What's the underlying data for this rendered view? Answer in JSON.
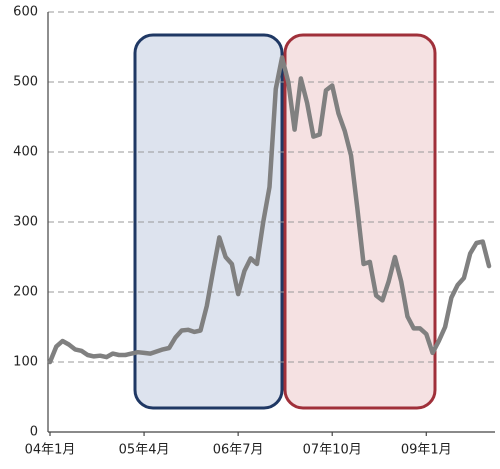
{
  "chart_data": {
    "type": "line",
    "categories": [
      "04年1月",
      null,
      null,
      null,
      null,
      null,
      null,
      null,
      null,
      null,
      null,
      null,
      null,
      null,
      null,
      "05年4月",
      null,
      null,
      null,
      null,
      null,
      null,
      null,
      null,
      null,
      null,
      null,
      null,
      null,
      null,
      "06年7月",
      null,
      null,
      null,
      null,
      null,
      null,
      null,
      null,
      null,
      null,
      null,
      null,
      null,
      null,
      "07年10月",
      null,
      null,
      null,
      null,
      null,
      null,
      null,
      null,
      null,
      null,
      null,
      null,
      null,
      null,
      "09年1月",
      null,
      null,
      null,
      null,
      null,
      null,
      null,
      null,
      null,
      null
    ],
    "series": [
      {
        "color": "#808080",
        "values": [
          100,
          122,
          130,
          125,
          118,
          116,
          110,
          108,
          109,
          107,
          112,
          110,
          110,
          112,
          114,
          113,
          112,
          115,
          118,
          120,
          135,
          145,
          146,
          143,
          145,
          180,
          230,
          278,
          250,
          240,
          197,
          230,
          248,
          240,
          300,
          350,
          490,
          535,
          500,
          432,
          505,
          470,
          422,
          425,
          488,
          495,
          455,
          430,
          395,
          320,
          240,
          243,
          195,
          188,
          215,
          250,
          215,
          165,
          148,
          148,
          140,
          113,
          130,
          150,
          192,
          210,
          220,
          255,
          270,
          272,
          237
        ]
      }
    ],
    "ylim": [
      0,
      600
    ],
    "yticks": [
      0,
      100,
      200,
      300,
      400,
      500,
      600
    ],
    "grid": true
  }
}
